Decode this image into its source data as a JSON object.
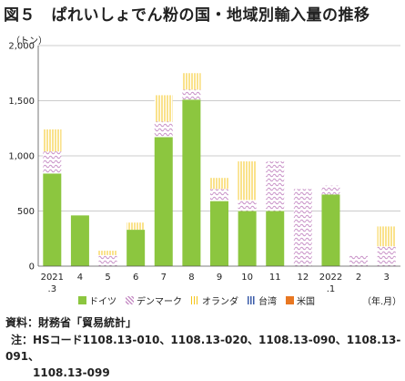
{
  "title": "図５　ぱれいしょでん粉の国・地域別輸入量の推移",
  "chart_data": {
    "type": "bar",
    "stacked": true,
    "y_unit": "（トン）",
    "x_unit": "（年.月）",
    "ylim": [
      0,
      2000
    ],
    "yticks": [
      "0",
      "500",
      "1,000",
      "1,500",
      "2,000"
    ],
    "categories": [
      "2021\n.3",
      "4",
      "5",
      "6",
      "7",
      "8",
      "9",
      "10",
      "11",
      "12",
      "2022\n.1",
      "2",
      "3"
    ],
    "series": [
      {
        "name": "ドイツ",
        "color": "#8cc63f",
        "pattern": "solid",
        "values": [
          840,
          460,
          0,
          330,
          1170,
          1510,
          590,
          500,
          500,
          0,
          650,
          0,
          0
        ]
      },
      {
        "name": "デンマーク",
        "color": "#c78fc6",
        "pattern": "wave",
        "values": [
          200,
          0,
          100,
          0,
          140,
          90,
          110,
          100,
          450,
          700,
          80,
          100,
          180
        ]
      },
      {
        "name": "オランダ",
        "color": "#f5c518",
        "pattern": "vlines",
        "values": [
          200,
          0,
          40,
          65,
          240,
          150,
          100,
          350,
          0,
          0,
          0,
          0,
          180
        ]
      },
      {
        "name": "台湾",
        "color": "#3a5ba8",
        "pattern": "dots",
        "values": [
          0,
          0,
          0,
          0,
          0,
          0,
          0,
          0,
          0,
          0,
          0,
          0,
          0
        ]
      },
      {
        "name": "米国",
        "color": "#e87722",
        "pattern": "solid",
        "values": [
          0,
          0,
          0,
          0,
          0,
          0,
          0,
          0,
          0,
          0,
          0,
          0,
          0
        ]
      }
    ],
    "grid": true,
    "legend_position": "bottom"
  },
  "source": "資料：財務省「貿易統計」",
  "note_prefix": "注：",
  "note_line1": "HSコード1108.13-010、1108.13-020、1108.13-090、1108.13-091、",
  "note_line2": "1108.13-099"
}
